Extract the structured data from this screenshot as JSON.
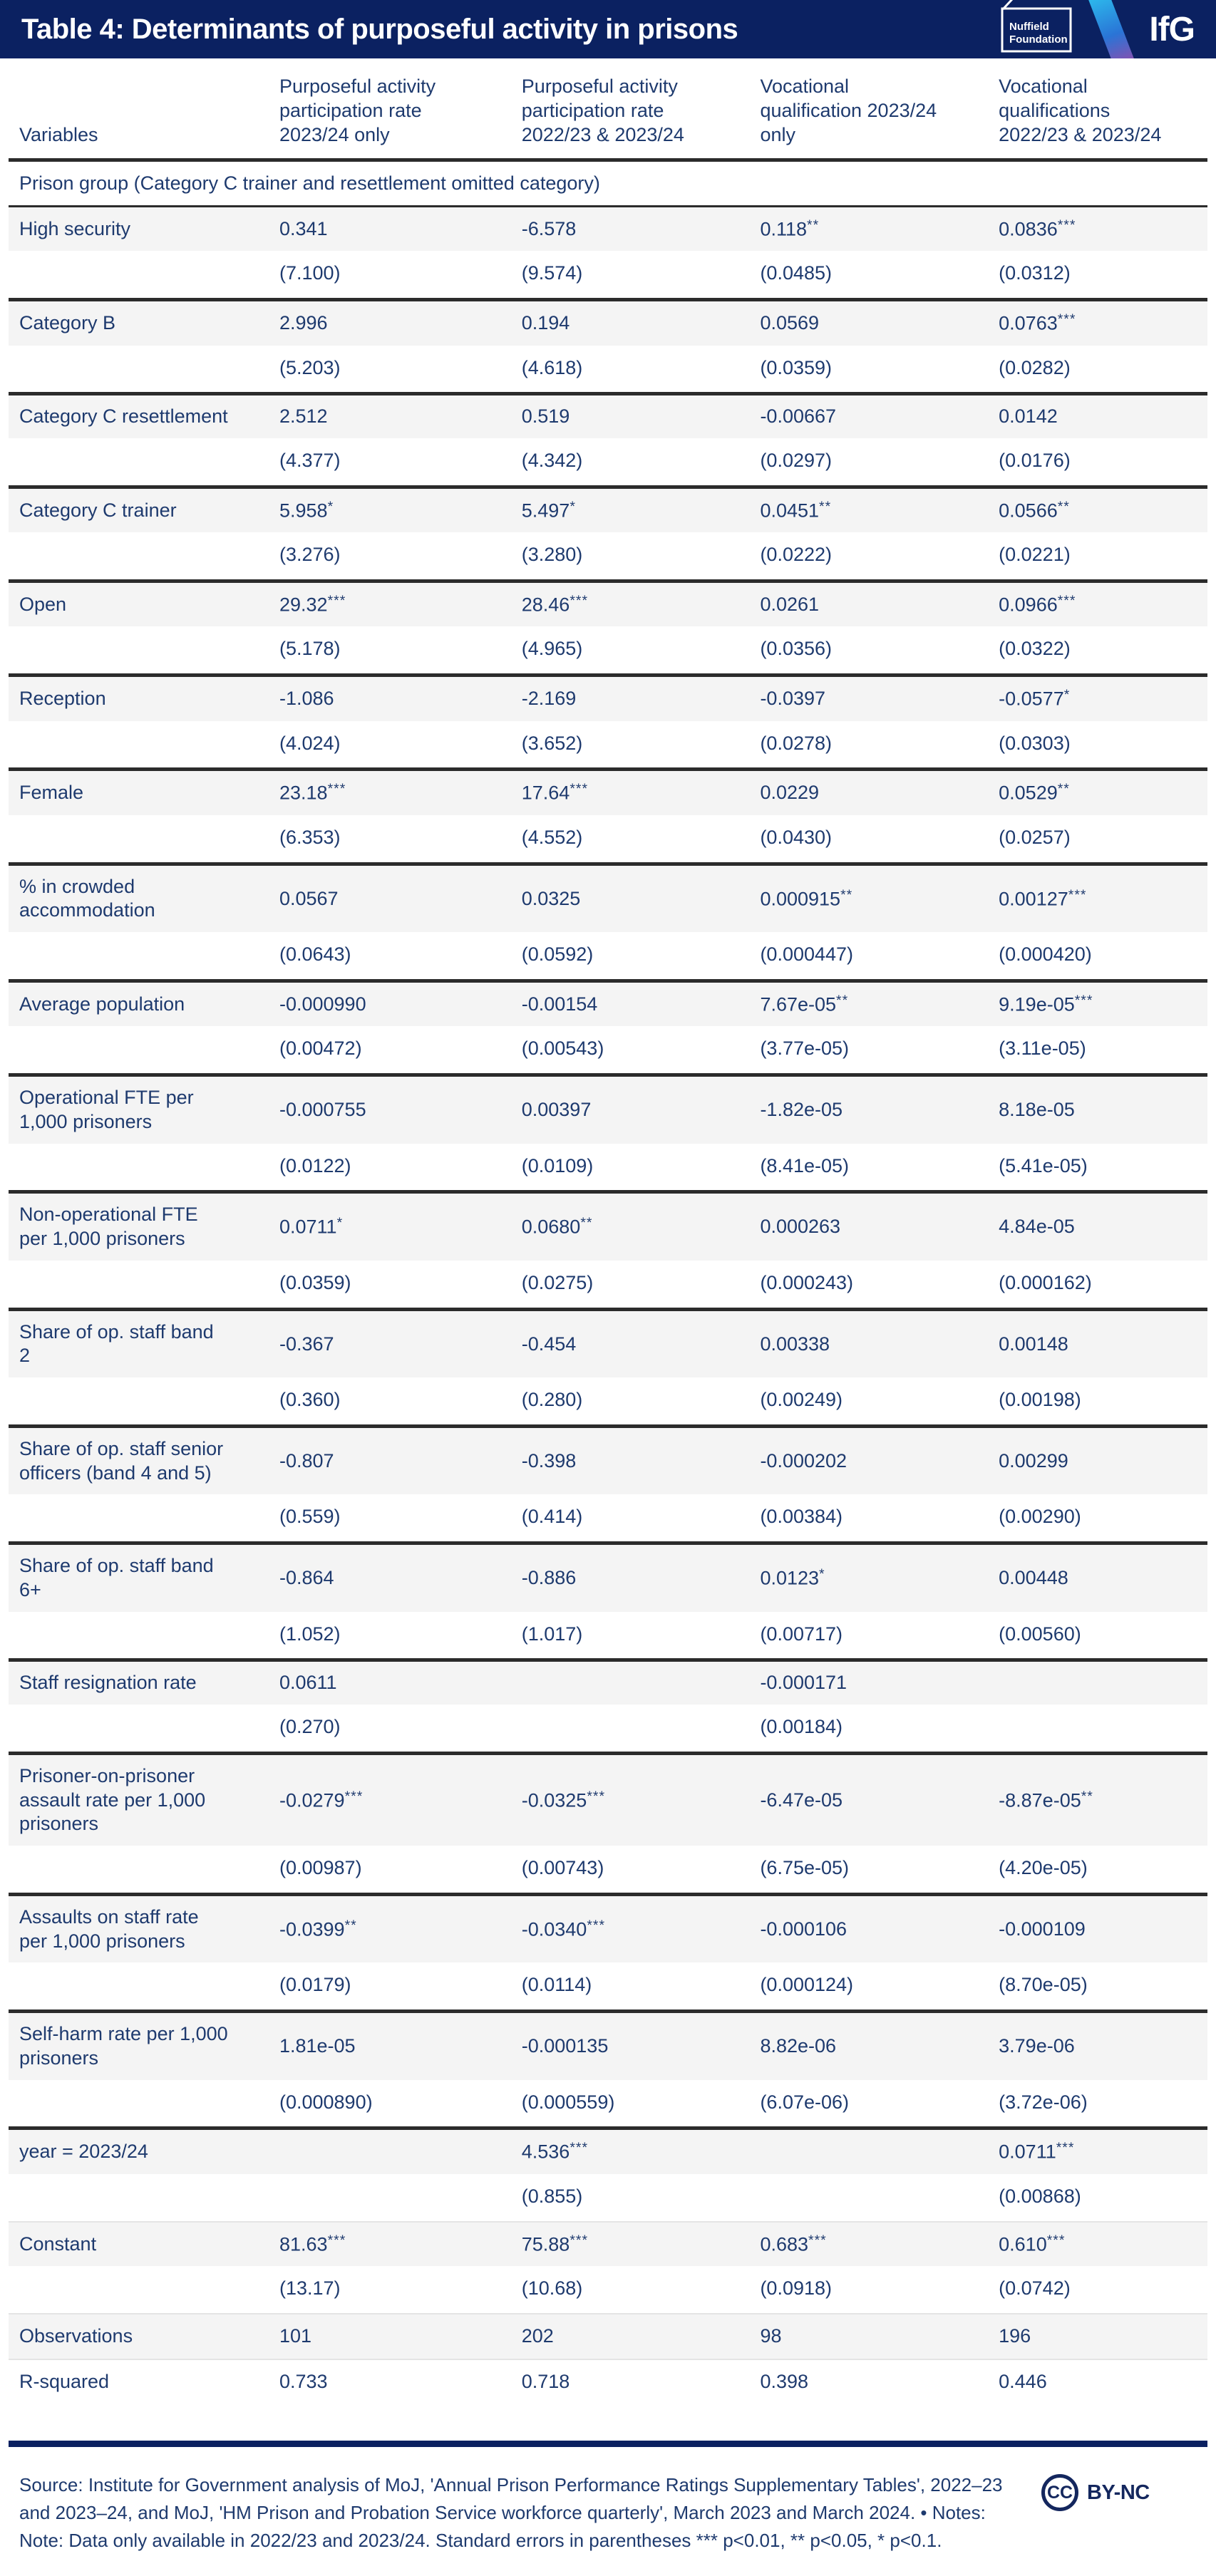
{
  "header": {
    "nuffield_logo_line1": "Nuffield",
    "nuffield_logo_line2": "Foundation",
    "ifg_logo": "IfG"
  },
  "chart_data": {
    "type": "table",
    "title": "Table 4: Determinants of purposeful activity in prisons",
    "columns": [
      "Variables",
      "Purposeful activity participation rate 2023/24 only",
      "Purposeful activity participation rate 2022/23 & 2023/24",
      "Vocational qualification 2023/24 only",
      "Vocational qualifications 2022/23 & 2023/24"
    ],
    "section_header": "Prison group (Category C trainer and resettlement omitted category)",
    "blocks": [
      {
        "label": "High security",
        "coefs": [
          "0.341",
          "-6.578",
          "0.118**",
          "0.0836***"
        ],
        "ses": [
          "(7.100)",
          "(9.574)",
          "(0.0485)",
          "(0.0312)"
        ],
        "divider": "dark"
      },
      {
        "label": "Category B",
        "coefs": [
          "2.996",
          "0.194",
          "0.0569",
          "0.0763***"
        ],
        "ses": [
          "(5.203)",
          "(4.618)",
          "(0.0359)",
          "(0.0282)"
        ],
        "divider": "dark"
      },
      {
        "label": "Category C resettlement",
        "coefs": [
          "2.512",
          "0.519",
          "-0.00667",
          "0.0142"
        ],
        "ses": [
          "(4.377)",
          "(4.342)",
          "(0.0297)",
          "(0.0176)"
        ],
        "divider": "dark"
      },
      {
        "label": "Category C trainer",
        "coefs": [
          "5.958*",
          "5.497*",
          "0.0451**",
          "0.0566**"
        ],
        "ses": [
          "(3.276)",
          "(3.280)",
          "(0.0222)",
          "(0.0221)"
        ],
        "divider": "dark"
      },
      {
        "label": "Open",
        "coefs": [
          "29.32***",
          "28.46***",
          "0.0261",
          "0.0966***"
        ],
        "ses": [
          "(5.178)",
          "(4.965)",
          "(0.0356)",
          "(0.0322)"
        ],
        "divider": "dark"
      },
      {
        "label": "Reception",
        "coefs": [
          "-1.086",
          "-2.169",
          "-0.0397",
          "-0.0577*"
        ],
        "ses": [
          "(4.024)",
          "(3.652)",
          "(0.0278)",
          "(0.0303)"
        ],
        "divider": "dark"
      },
      {
        "label": "Female",
        "coefs": [
          "23.18***",
          "17.64***",
          "0.0229",
          "0.0529**"
        ],
        "ses": [
          "(6.353)",
          "(4.552)",
          "(0.0430)",
          "(0.0257)"
        ],
        "divider": "dark"
      },
      {
        "label": "% in crowded accommodation",
        "coefs": [
          "0.0567",
          "0.0325",
          "0.000915**",
          "0.00127***"
        ],
        "ses": [
          "(0.0643)",
          "(0.0592)",
          "(0.000447)",
          "(0.000420)"
        ],
        "divider": "dark"
      },
      {
        "label": "Average population",
        "coefs": [
          "-0.000990",
          "-0.00154",
          "7.67e-05**",
          "9.19e-05***"
        ],
        "ses": [
          "(0.00472)",
          "(0.00543)",
          "(3.77e-05)",
          "(3.11e-05)"
        ],
        "divider": "dark"
      },
      {
        "label": "Operational FTE per 1,000 prisoners",
        "coefs": [
          "-0.000755",
          "0.00397",
          "-1.82e-05",
          "8.18e-05"
        ],
        "ses": [
          "(0.0122)",
          "(0.0109)",
          "(8.41e-05)",
          "(5.41e-05)"
        ],
        "divider": "dark"
      },
      {
        "label": "Non-operational FTE per 1,000 prisoners",
        "coefs": [
          "0.0711*",
          "0.0680**",
          "0.000263",
          "4.84e-05"
        ],
        "ses": [
          "(0.0359)",
          "(0.0275)",
          "(0.000243)",
          "(0.000162)"
        ],
        "divider": "dark"
      },
      {
        "label": "Share of op. staff band 2",
        "coefs": [
          "-0.367",
          "-0.454",
          "0.00338",
          "0.00148"
        ],
        "ses": [
          "(0.360)",
          "(0.280)",
          "(0.00249)",
          "(0.00198)"
        ],
        "divider": "dark"
      },
      {
        "label": "Share of op. staff senior officers (band 4 and 5)",
        "coefs": [
          "-0.807",
          "-0.398",
          "-0.000202",
          "0.00299"
        ],
        "ses": [
          "(0.559)",
          "(0.414)",
          "(0.00384)",
          "(0.00290)"
        ],
        "divider": "dark"
      },
      {
        "label": "Share of op. staff band 6+",
        "coefs": [
          "-0.864",
          "-0.886",
          "0.0123*",
          "0.00448"
        ],
        "ses": [
          "(1.052)",
          "(1.017)",
          "(0.00717)",
          "(0.00560)"
        ],
        "divider": "dark"
      },
      {
        "label": "Staff resignation rate",
        "coefs": [
          "0.0611",
          "",
          "-0.000171",
          ""
        ],
        "ses": [
          "(0.270)",
          "",
          "(0.00184)",
          ""
        ],
        "divider": "dark"
      },
      {
        "label": "Prisoner-on-prisoner assault rate per 1,000 prisoners",
        "coefs": [
          "-0.0279***",
          "-0.0325***",
          "-6.47e-05",
          "-8.87e-05**"
        ],
        "ses": [
          "(0.00987)",
          "(0.00743)",
          "(6.75e-05)",
          "(4.20e-05)"
        ],
        "divider": "dark"
      },
      {
        "label": "Assaults on staff rate per 1,000 prisoners",
        "coefs": [
          "-0.0399**",
          "-0.0340***",
          "-0.000106",
          "-0.000109"
        ],
        "ses": [
          "(0.0179)",
          "(0.0114)",
          "(0.000124)",
          "(8.70e-05)"
        ],
        "divider": "dark"
      },
      {
        "label": "Self-harm rate per 1,000 prisoners",
        "coefs": [
          "1.81e-05",
          "-0.000135",
          "8.82e-06",
          "3.79e-06"
        ],
        "ses": [
          "(0.000890)",
          "(0.000559)",
          "(6.07e-06)",
          "(3.72e-06)"
        ],
        "divider": "dark"
      },
      {
        "label": "year = 2023/24",
        "coefs": [
          "",
          "4.536***",
          "",
          "0.0711***"
        ],
        "ses": [
          "",
          "(0.855)",
          "",
          "(0.00868)"
        ],
        "divider": "light"
      },
      {
        "label": "Constant",
        "coefs": [
          "81.63***",
          "75.88***",
          "0.683***",
          "0.610***"
        ],
        "ses": [
          "(13.17)",
          "(10.68)",
          "(0.0918)",
          "(0.0742)"
        ],
        "divider": "light"
      }
    ],
    "summary_rows": [
      {
        "label": "Observations",
        "values": [
          "101",
          "202",
          "98",
          "196"
        ],
        "divider": "light"
      },
      {
        "label": "R-squared",
        "values": [
          "0.733",
          "0.718",
          "0.398",
          "0.446"
        ],
        "divider": ""
      }
    ]
  },
  "footer": {
    "source_text": "Source: Institute for Government analysis of MoJ, 'Annual Prison Performance Ratings Supplementary Tables', 2022–23 and 2023–24, and MoJ, 'HM Prison and Probation Service workforce quarterly', March 2023 and March 2024. • Notes: Note: Data only available in 2022/23 and 2023/24. Standard errors in parentheses *** p<0.01, ** p<0.05, * p<0.1.",
    "cc_circle_text": "CC",
    "license_label": "BY-NC"
  },
  "colors": {
    "brand_navy": "#0b2161",
    "text_navy": "#1e3a6e",
    "row_grey": "#f4f4f4",
    "divider_dark": "#2b2b2b",
    "divider_light": "#e4e4e4",
    "stripe_cyan": "#2cb9ec",
    "stripe_purple": "#b44fa5"
  }
}
